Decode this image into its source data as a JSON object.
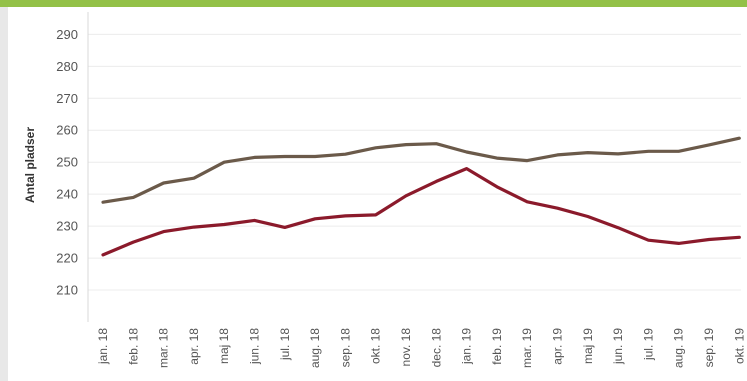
{
  "colors": {
    "top_bar": "#93c148",
    "background": "#e8e8e8",
    "panel": "#ffffff"
  },
  "chart_data": {
    "type": "line",
    "title": "",
    "xlabel": "",
    "ylabel": "Antal pladser",
    "ylim": [
      200,
      297
    ],
    "yticks": [
      210,
      220,
      230,
      240,
      250,
      260,
      270,
      280,
      290
    ],
    "grid": true,
    "categories": [
      "jan. 18",
      "feb. 18",
      "mar. 18",
      "apr. 18",
      "maj 18",
      "jun. 18",
      "jul. 18",
      "aug. 18",
      "sep. 18",
      "okt. 18",
      "nov. 18",
      "dec. 18",
      "jan. 19",
      "feb. 19",
      "mar. 19",
      "apr. 19",
      "maj 19",
      "jun. 19",
      "jul. 19",
      "aug. 19",
      "sep. 19",
      "okt. 19"
    ],
    "series": [
      {
        "color": "#6b5a4a",
        "values": [
          237.5,
          239,
          243.5,
          245,
          250,
          251.5,
          251.8,
          251.8,
          252.5,
          254.5,
          255.5,
          255.8,
          253.2,
          251.3,
          250.5,
          252.3,
          253,
          252.6,
          253.4,
          253.4,
          255.4,
          257.5
        ]
      },
      {
        "color": "#8b1a2b",
        "values": [
          221,
          225,
          228.3,
          229.7,
          230.5,
          231.8,
          229.6,
          232.3,
          233.2,
          233.5,
          239.5,
          244,
          248,
          242.3,
          237.6,
          235.6,
          233,
          229.5,
          225.6,
          224.6,
          225.8,
          226.5
        ]
      }
    ]
  }
}
